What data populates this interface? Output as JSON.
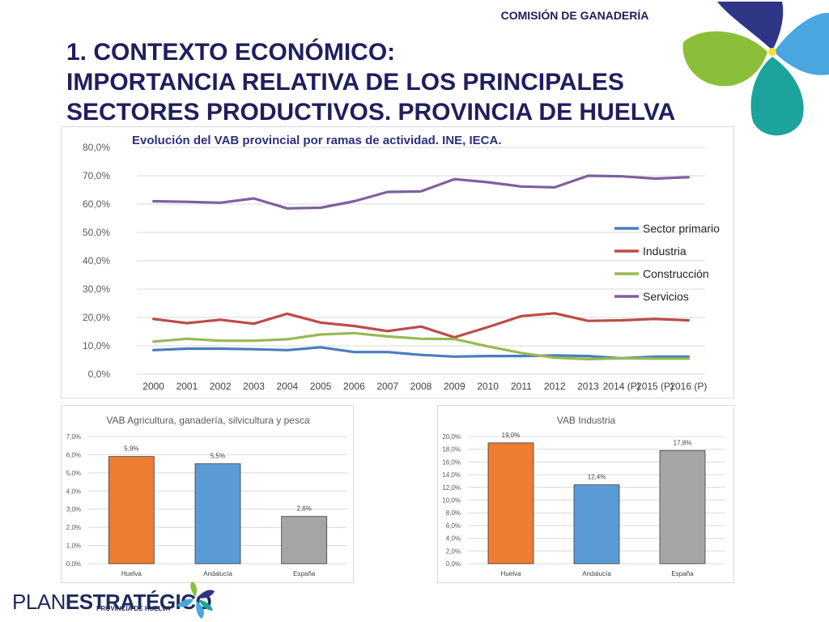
{
  "header": {
    "commission": "COMISIÓN DE GANADERÍA",
    "title_lines": [
      "1. CONTEXTO ECONÓMICO:",
      "IMPORTANCIA RELATIVA DE LOS PRINCIPALES",
      "SECTORES PRODUCTIVOS. PROVINCIA DE HUELVA"
    ]
  },
  "logo": {
    "plan": "PLAN",
    "estrategico": "ESTRATÉGICO",
    "subtitle": "PROVINCIA DE HUELVA"
  },
  "chart_data": [
    {
      "type": "line",
      "title": "Evolución del VAB provincial por ramas de actividad. INE, IECA.",
      "categories": [
        "2000",
        "2001",
        "2002",
        "2003",
        "2004",
        "2005",
        "2006",
        "2007",
        "2008",
        "2009",
        "2010",
        "2011",
        "2012",
        "2013",
        "2014 (P)",
        "2015 (P)",
        "2016 (P)"
      ],
      "ylim": [
        0,
        80
      ],
      "yticks": [
        "0,0%",
        "10,0%",
        "20,0%",
        "30,0%",
        "40,0%",
        "50,0%",
        "60,0%",
        "70,0%",
        "80,0%"
      ],
      "grid": true,
      "legend": "right",
      "series": [
        {
          "name": "Sector primario",
          "color": "#4a7ebb",
          "values": [
            8.5,
            9.0,
            9.0,
            8.8,
            8.5,
            9.5,
            7.8,
            7.8,
            6.8,
            6.2,
            6.4,
            6.4,
            6.6,
            6.4,
            5.6,
            6.2,
            6.2
          ]
        },
        {
          "name": "Industria",
          "color": "#be4b48",
          "values": [
            19.5,
            18.0,
            19.2,
            17.8,
            21.3,
            18.2,
            17.0,
            15.2,
            16.8,
            13.0,
            16.6,
            20.5,
            21.5,
            18.8,
            19.0,
            19.5,
            19.0
          ]
        },
        {
          "name": "Construcción",
          "color": "#98b954",
          "values": [
            11.5,
            12.5,
            11.8,
            11.8,
            12.3,
            14.0,
            14.5,
            13.3,
            12.5,
            12.4,
            9.8,
            7.5,
            5.8,
            5.3,
            5.6,
            5.5,
            5.5
          ]
        },
        {
          "name": "Servicios",
          "color": "#7d60a0",
          "values": [
            61.0,
            60.8,
            60.5,
            62.0,
            58.5,
            58.7,
            61.0,
            64.3,
            64.5,
            68.8,
            67.7,
            66.2,
            65.9,
            70.0,
            69.8,
            69.0,
            69.5
          ]
        }
      ]
    },
    {
      "type": "bar",
      "title": "VAB Agricultura, ganadería, silvicultura y pesca",
      "categories": [
        "Huelva",
        "Andalucía",
        "España"
      ],
      "values": [
        5.9,
        5.5,
        2.6
      ],
      "labels": [
        "5,9%",
        "5,5%",
        "2,6%"
      ],
      "colors": [
        "#ed7d31",
        "#5b9bd5",
        "#a5a5a5"
      ],
      "ylim": [
        0,
        7
      ],
      "yticks": [
        "0,0%",
        "1,0%",
        "2,0%",
        "3,0%",
        "4,0%",
        "5,0%",
        "6,0%",
        "7,0%"
      ],
      "grid": true
    },
    {
      "type": "bar",
      "title": "VAB Industria",
      "categories": [
        "Huelva",
        "Andalucía",
        "España"
      ],
      "values": [
        19.0,
        12.4,
        17.8
      ],
      "labels": [
        "19,0%",
        "12,4%",
        "17,8%"
      ],
      "colors": [
        "#ed7d31",
        "#5b9bd5",
        "#a5a5a5"
      ],
      "ylim": [
        0,
        20
      ],
      "yticks": [
        "0,0%",
        "2,0%",
        "4,0%",
        "6,0%",
        "8,0%",
        "10,0%",
        "12,0%",
        "14,0%",
        "16,0%",
        "18,0%",
        "20,0%"
      ],
      "grid": true
    }
  ]
}
